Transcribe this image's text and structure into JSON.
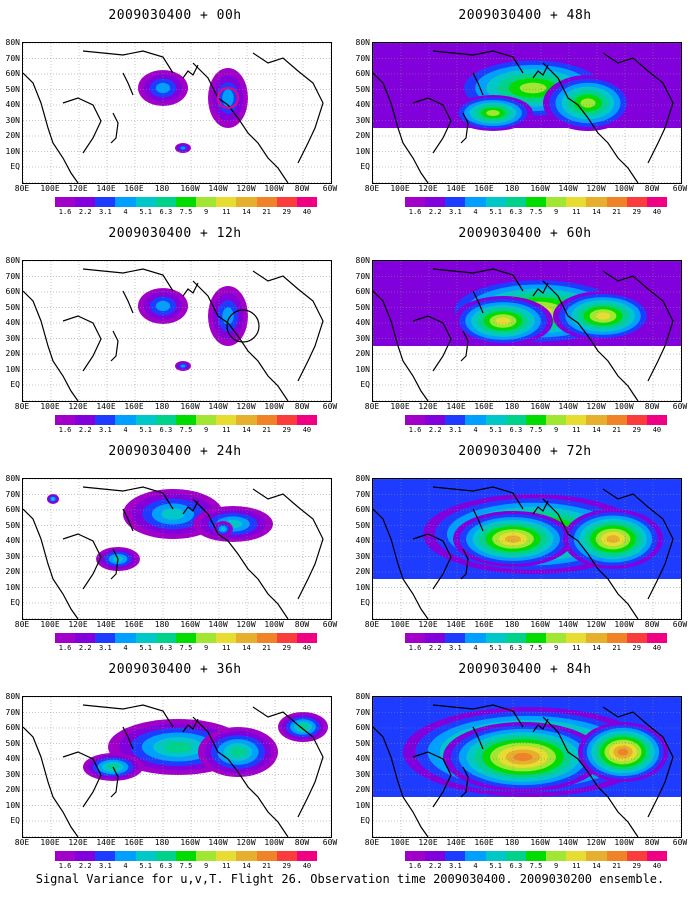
{
  "footer": "Signal Variance for u,v,T. Flight 26. Observation time 2009030400. 2009030200 ensemble.",
  "lat_labels": [
    "80N",
    "70N",
    "60N",
    "50N",
    "40N",
    "30N",
    "20N",
    "10N",
    "EQ"
  ],
  "lon_labels": [
    "80E",
    "100E",
    "120E",
    "140E",
    "160E",
    "180",
    "160W",
    "140W",
    "120W",
    "100W",
    "80W",
    "60W"
  ],
  "colorbar": {
    "values": [
      "1.6",
      "2.2",
      "3.1",
      "4",
      "5.1",
      "6.3",
      "7.5",
      "9",
      "11",
      "14",
      "21",
      "29",
      "40"
    ],
    "colors": [
      "#a000c8",
      "#8200dc",
      "#1e3cff",
      "#00a0ff",
      "#00c8c8",
      "#00d28c",
      "#00dc00",
      "#a0e632",
      "#e6dc32",
      "#e6af2d",
      "#f08228",
      "#fa3c3c",
      "#f00082"
    ]
  },
  "panels": [
    {
      "id": "p00",
      "title": "2009030400 + 00h",
      "level": 0
    },
    {
      "id": "p48",
      "title": "2009030400 + 48h",
      "level": 3
    },
    {
      "id": "p12",
      "title": "2009030400 + 12h",
      "level": 0
    },
    {
      "id": "p60",
      "title": "2009030400 + 60h",
      "level": 4
    },
    {
      "id": "p24",
      "title": "2009030400 + 24h",
      "level": 1
    },
    {
      "id": "p72",
      "title": "2009030400 + 72h",
      "level": 5
    },
    {
      "id": "p36",
      "title": "2009030400 + 36h",
      "level": 2
    },
    {
      "id": "p84",
      "title": "2009030400 + 84h",
      "level": 6
    }
  ]
}
